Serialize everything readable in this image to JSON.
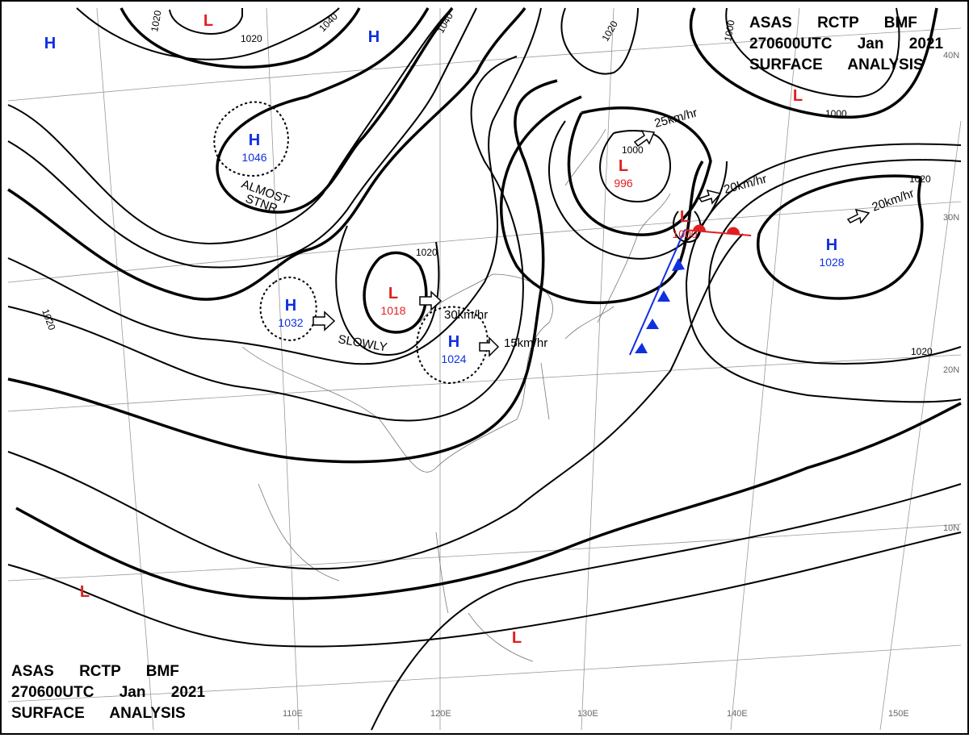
{
  "header": {
    "lines": [
      "ASAS RCTP BMF",
      "270600UTC Jan 2021",
      "SURFACE ANALYSIS"
    ]
  },
  "systems": [
    {
      "label": "H"
    },
    {
      "label": "L"
    },
    {
      "label": "H"
    },
    {
      "label": "H",
      "value": 1046
    },
    {
      "label": "L"
    },
    {
      "label": "L",
      "value": 996
    },
    {
      "label": "L",
      "value": 1000
    },
    {
      "label": "H",
      "value": 1028
    },
    {
      "label": "H",
      "value": 1032
    },
    {
      "label": "L",
      "value": 1018
    },
    {
      "label": "H",
      "value": 1024
    },
    {
      "label": "L"
    },
    {
      "label": "L"
    }
  ],
  "isobar_labels": [
    1020,
    1020,
    1040,
    1040,
    1020,
    1000,
    1000,
    1000,
    1020,
    1020,
    1020,
    1020
  ],
  "annotations": [
    "ALMOST",
    "STNR",
    "SLOWLY",
    "30km/hr",
    "15km/hr",
    "25km/hr",
    "20km/hr",
    "20km/hr"
  ],
  "longitudes": [
    "110E",
    "120E",
    "130E",
    "140E",
    "150E"
  ],
  "latitudes": [
    "40N",
    "30N",
    "20N",
    "10N"
  ]
}
